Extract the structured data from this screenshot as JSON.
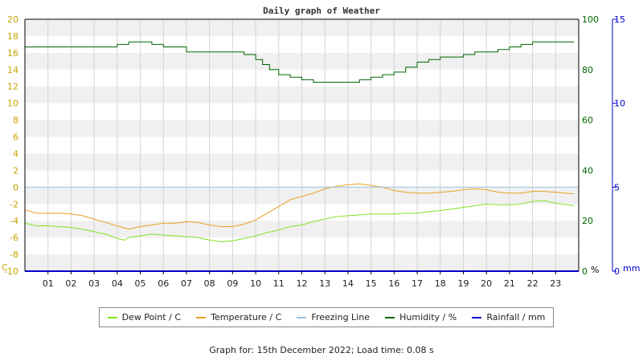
{
  "chart_data": {
    "type": "line",
    "title": "Daily graph of Weather",
    "x_ticks": [
      "01",
      "02",
      "03",
      "04",
      "05",
      "06",
      "07",
      "08",
      "09",
      "10",
      "11",
      "12",
      "13",
      "14",
      "15",
      "16",
      "17",
      "18",
      "19",
      "20",
      "21",
      "22",
      "23"
    ],
    "xlim": [
      0,
      24
    ],
    "left_axis": {
      "unit_label": "C",
      "ylim": [
        -10,
        20
      ],
      "ticks": [
        -10,
        -8,
        -6,
        -4,
        -2,
        0,
        2,
        4,
        6,
        8,
        10,
        12,
        14,
        16,
        18,
        20
      ],
      "color": "#c8a000"
    },
    "humidity_axis": {
      "unit_label": "%",
      "ylim": [
        0,
        100
      ],
      "ticks": [
        0,
        20,
        40,
        60,
        80,
        100
      ],
      "color": "#006400"
    },
    "rainfall_axis": {
      "unit_label": "mm",
      "ylim": [
        0,
        15
      ],
      "ticks": [
        0,
        5,
        10,
        15
      ],
      "color": "#0000cc"
    },
    "grid": true,
    "legend_position": "bottom",
    "series": [
      {
        "name": "Dew Point / C",
        "color": "#7ee51f",
        "axis": "temp",
        "x": [
          0,
          0.5,
          1,
          1.5,
          2,
          2.5,
          3,
          3.5,
          4,
          4.3,
          4.5,
          5,
          5.5,
          6,
          6.5,
          7,
          7.5,
          8,
          8.5,
          9,
          9.5,
          10,
          10.5,
          11,
          11.5,
          12,
          12.5,
          13,
          13.5,
          14,
          14.5,
          15,
          15.5,
          16,
          16.5,
          17,
          17.5,
          18,
          18.5,
          19,
          19.5,
          20,
          20.5,
          21,
          21.5,
          22,
          22.5,
          23,
          23.8
        ],
        "values": [
          -4.3,
          -4.6,
          -4.6,
          -4.7,
          -4.8,
          -5.0,
          -5.3,
          -5.6,
          -6.1,
          -6.3,
          -6.0,
          -5.8,
          -5.6,
          -5.7,
          -5.8,
          -5.9,
          -6.0,
          -6.3,
          -6.5,
          -6.4,
          -6.1,
          -5.8,
          -5.4,
          -5.1,
          -4.7,
          -4.5,
          -4.1,
          -3.8,
          -3.5,
          -3.4,
          -3.3,
          -3.2,
          -3.2,
          -3.2,
          -3.1,
          -3.1,
          -2.9,
          -2.8,
          -2.6,
          -2.4,
          -2.2,
          -2.0,
          -2.1,
          -2.1,
          -2.0,
          -1.7,
          -1.6,
          -1.9,
          -2.2
        ]
      },
      {
        "name": "Temperature / C",
        "color": "#e8a020",
        "axis": "temp",
        "x": [
          0,
          0.5,
          1,
          1.5,
          2,
          2.5,
          3,
          3.5,
          4,
          4.5,
          5,
          5.5,
          6,
          6.5,
          7,
          7.5,
          8,
          8.5,
          9,
          9.5,
          10,
          10.5,
          11,
          11.5,
          12,
          12.5,
          13,
          13.5,
          14,
          14.5,
          15,
          15.5,
          16,
          16.5,
          17,
          17.5,
          18,
          18.5,
          19,
          19.5,
          20,
          20.5,
          21,
          21.5,
          22,
          22.5,
          23,
          23.8
        ],
        "values": [
          -2.7,
          -3.1,
          -3.1,
          -3.1,
          -3.2,
          -3.4,
          -3.8,
          -4.2,
          -4.6,
          -5.0,
          -4.7,
          -4.5,
          -4.3,
          -4.3,
          -4.1,
          -4.2,
          -4.5,
          -4.7,
          -4.7,
          -4.4,
          -3.9,
          -3.1,
          -2.3,
          -1.5,
          -1.1,
          -0.7,
          -0.2,
          0.1,
          0.3,
          0.4,
          0.2,
          0.0,
          -0.4,
          -0.6,
          -0.7,
          -0.7,
          -0.6,
          -0.5,
          -0.3,
          -0.2,
          -0.3,
          -0.6,
          -0.7,
          -0.7,
          -0.5,
          -0.5,
          -0.6,
          -0.8
        ]
      },
      {
        "name": "Freezing Line",
        "color": "#9ec1e0",
        "axis": "temp",
        "x": [
          0,
          24
        ],
        "values": [
          0,
          0
        ]
      },
      {
        "name": "Humidity / %",
        "color": "#006400",
        "axis": "humidity",
        "x": [
          0,
          1,
          2,
          3,
          3.9,
          4,
          4.5,
          5,
          5.5,
          6,
          6.5,
          7,
          7.5,
          8,
          8.5,
          9,
          9.5,
          10,
          10.3,
          10.6,
          11,
          11.5,
          12,
          12.5,
          13,
          13.5,
          14,
          14.5,
          15,
          15.5,
          16,
          16.5,
          17,
          17.5,
          18,
          18.5,
          19,
          19.5,
          20,
          20.5,
          21,
          21.5,
          22,
          22.5,
          23,
          23.5,
          23.8
        ],
        "values": [
          89,
          89,
          89,
          89,
          89,
          90,
          91,
          91,
          90,
          89,
          89,
          87,
          87,
          87,
          87,
          87,
          86,
          84,
          82,
          80,
          78,
          77,
          76,
          75,
          75,
          75,
          75,
          76,
          77,
          78,
          79,
          81,
          83,
          84,
          85,
          85,
          86,
          87,
          87,
          88,
          89,
          90,
          91,
          91,
          91,
          91,
          91
        ]
      },
      {
        "name": "Rainfall / mm",
        "color": "#0000cc",
        "axis": "rain",
        "x": [
          0,
          24
        ],
        "values": [
          0,
          0
        ]
      }
    ]
  },
  "footer": "Graph for: 15th December 2022; Load time: 0.08 s"
}
